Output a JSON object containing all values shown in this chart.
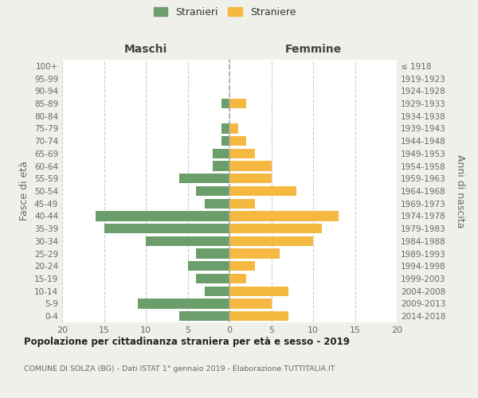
{
  "age_groups": [
    "0-4",
    "5-9",
    "10-14",
    "15-19",
    "20-24",
    "25-29",
    "30-34",
    "35-39",
    "40-44",
    "45-49",
    "50-54",
    "55-59",
    "60-64",
    "65-69",
    "70-74",
    "75-79",
    "80-84",
    "85-89",
    "90-94",
    "95-99",
    "100+"
  ],
  "birth_years": [
    "2014-2018",
    "2009-2013",
    "2004-2008",
    "1999-2003",
    "1994-1998",
    "1989-1993",
    "1984-1988",
    "1979-1983",
    "1974-1978",
    "1969-1973",
    "1964-1968",
    "1959-1963",
    "1954-1958",
    "1949-1953",
    "1944-1948",
    "1939-1943",
    "1934-1938",
    "1929-1933",
    "1924-1928",
    "1919-1923",
    "≤ 1918"
  ],
  "maschi": [
    6,
    11,
    3,
    4,
    5,
    4,
    10,
    15,
    16,
    3,
    4,
    6,
    2,
    2,
    1,
    1,
    0,
    1,
    0,
    0,
    0
  ],
  "femmine": [
    7,
    5,
    7,
    2,
    3,
    6,
    10,
    11,
    13,
    3,
    8,
    5,
    5,
    3,
    2,
    1,
    0,
    2,
    0,
    0,
    0
  ],
  "color_maschi": "#6b9e6b",
  "color_femmine": "#f5b942",
  "title": "Popolazione per cittadinanza straniera per età e sesso - 2019",
  "subtitle": "COMUNE DI SOLZA (BG) - Dati ISTAT 1° gennaio 2019 - Elaborazione TUTTITALIA.IT",
  "label_maschi": "Maschi",
  "label_femmine": "Femmine",
  "ylabel_left": "Fasce di età",
  "ylabel_right": "Anni di nascita",
  "xlim": 20,
  "xticks": [
    -20,
    -15,
    -10,
    -5,
    0,
    5,
    10,
    15,
    20
  ],
  "xticklabels": [
    "20",
    "15",
    "10",
    "5",
    "0",
    "5",
    "10",
    "15",
    "20"
  ],
  "legend_maschi": "Stranieri",
  "legend_femmine": "Straniere",
  "bg_color": "#f0f0eb",
  "plot_bg_color": "#ffffff",
  "grid_color": "#cccccc",
  "text_color": "#666666",
  "title_color": "#222222"
}
